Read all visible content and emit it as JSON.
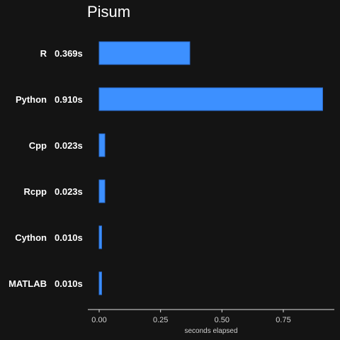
{
  "chart_data": {
    "type": "bar",
    "orientation": "horizontal",
    "title": "Pisum",
    "xlabel": "seconds elapsed",
    "ylabel": "",
    "categories": [
      "R",
      "Python",
      "Cpp",
      "Rcpp",
      "Cython",
      "MATLAB"
    ],
    "values": [
      0.369,
      0.91,
      0.023,
      0.023,
      0.01,
      0.01
    ],
    "value_labels": [
      "0.369s",
      "0.910s",
      "0.023s",
      "0.023s",
      "0.010s",
      "0.010s"
    ],
    "xlim": [
      0,
      0.95
    ],
    "xticks": [
      0.0,
      0.25,
      0.5,
      0.75
    ],
    "xtick_labels": [
      "0.00",
      "0.25",
      "0.50",
      "0.75"
    ],
    "grid": false,
    "legend": "none",
    "colors": {
      "background": "#141414",
      "bar_fill": "#3d90ff",
      "bar_stroke": "#2a6fd6",
      "text": "#ffffff",
      "axis": "#e0e0e0"
    }
  }
}
